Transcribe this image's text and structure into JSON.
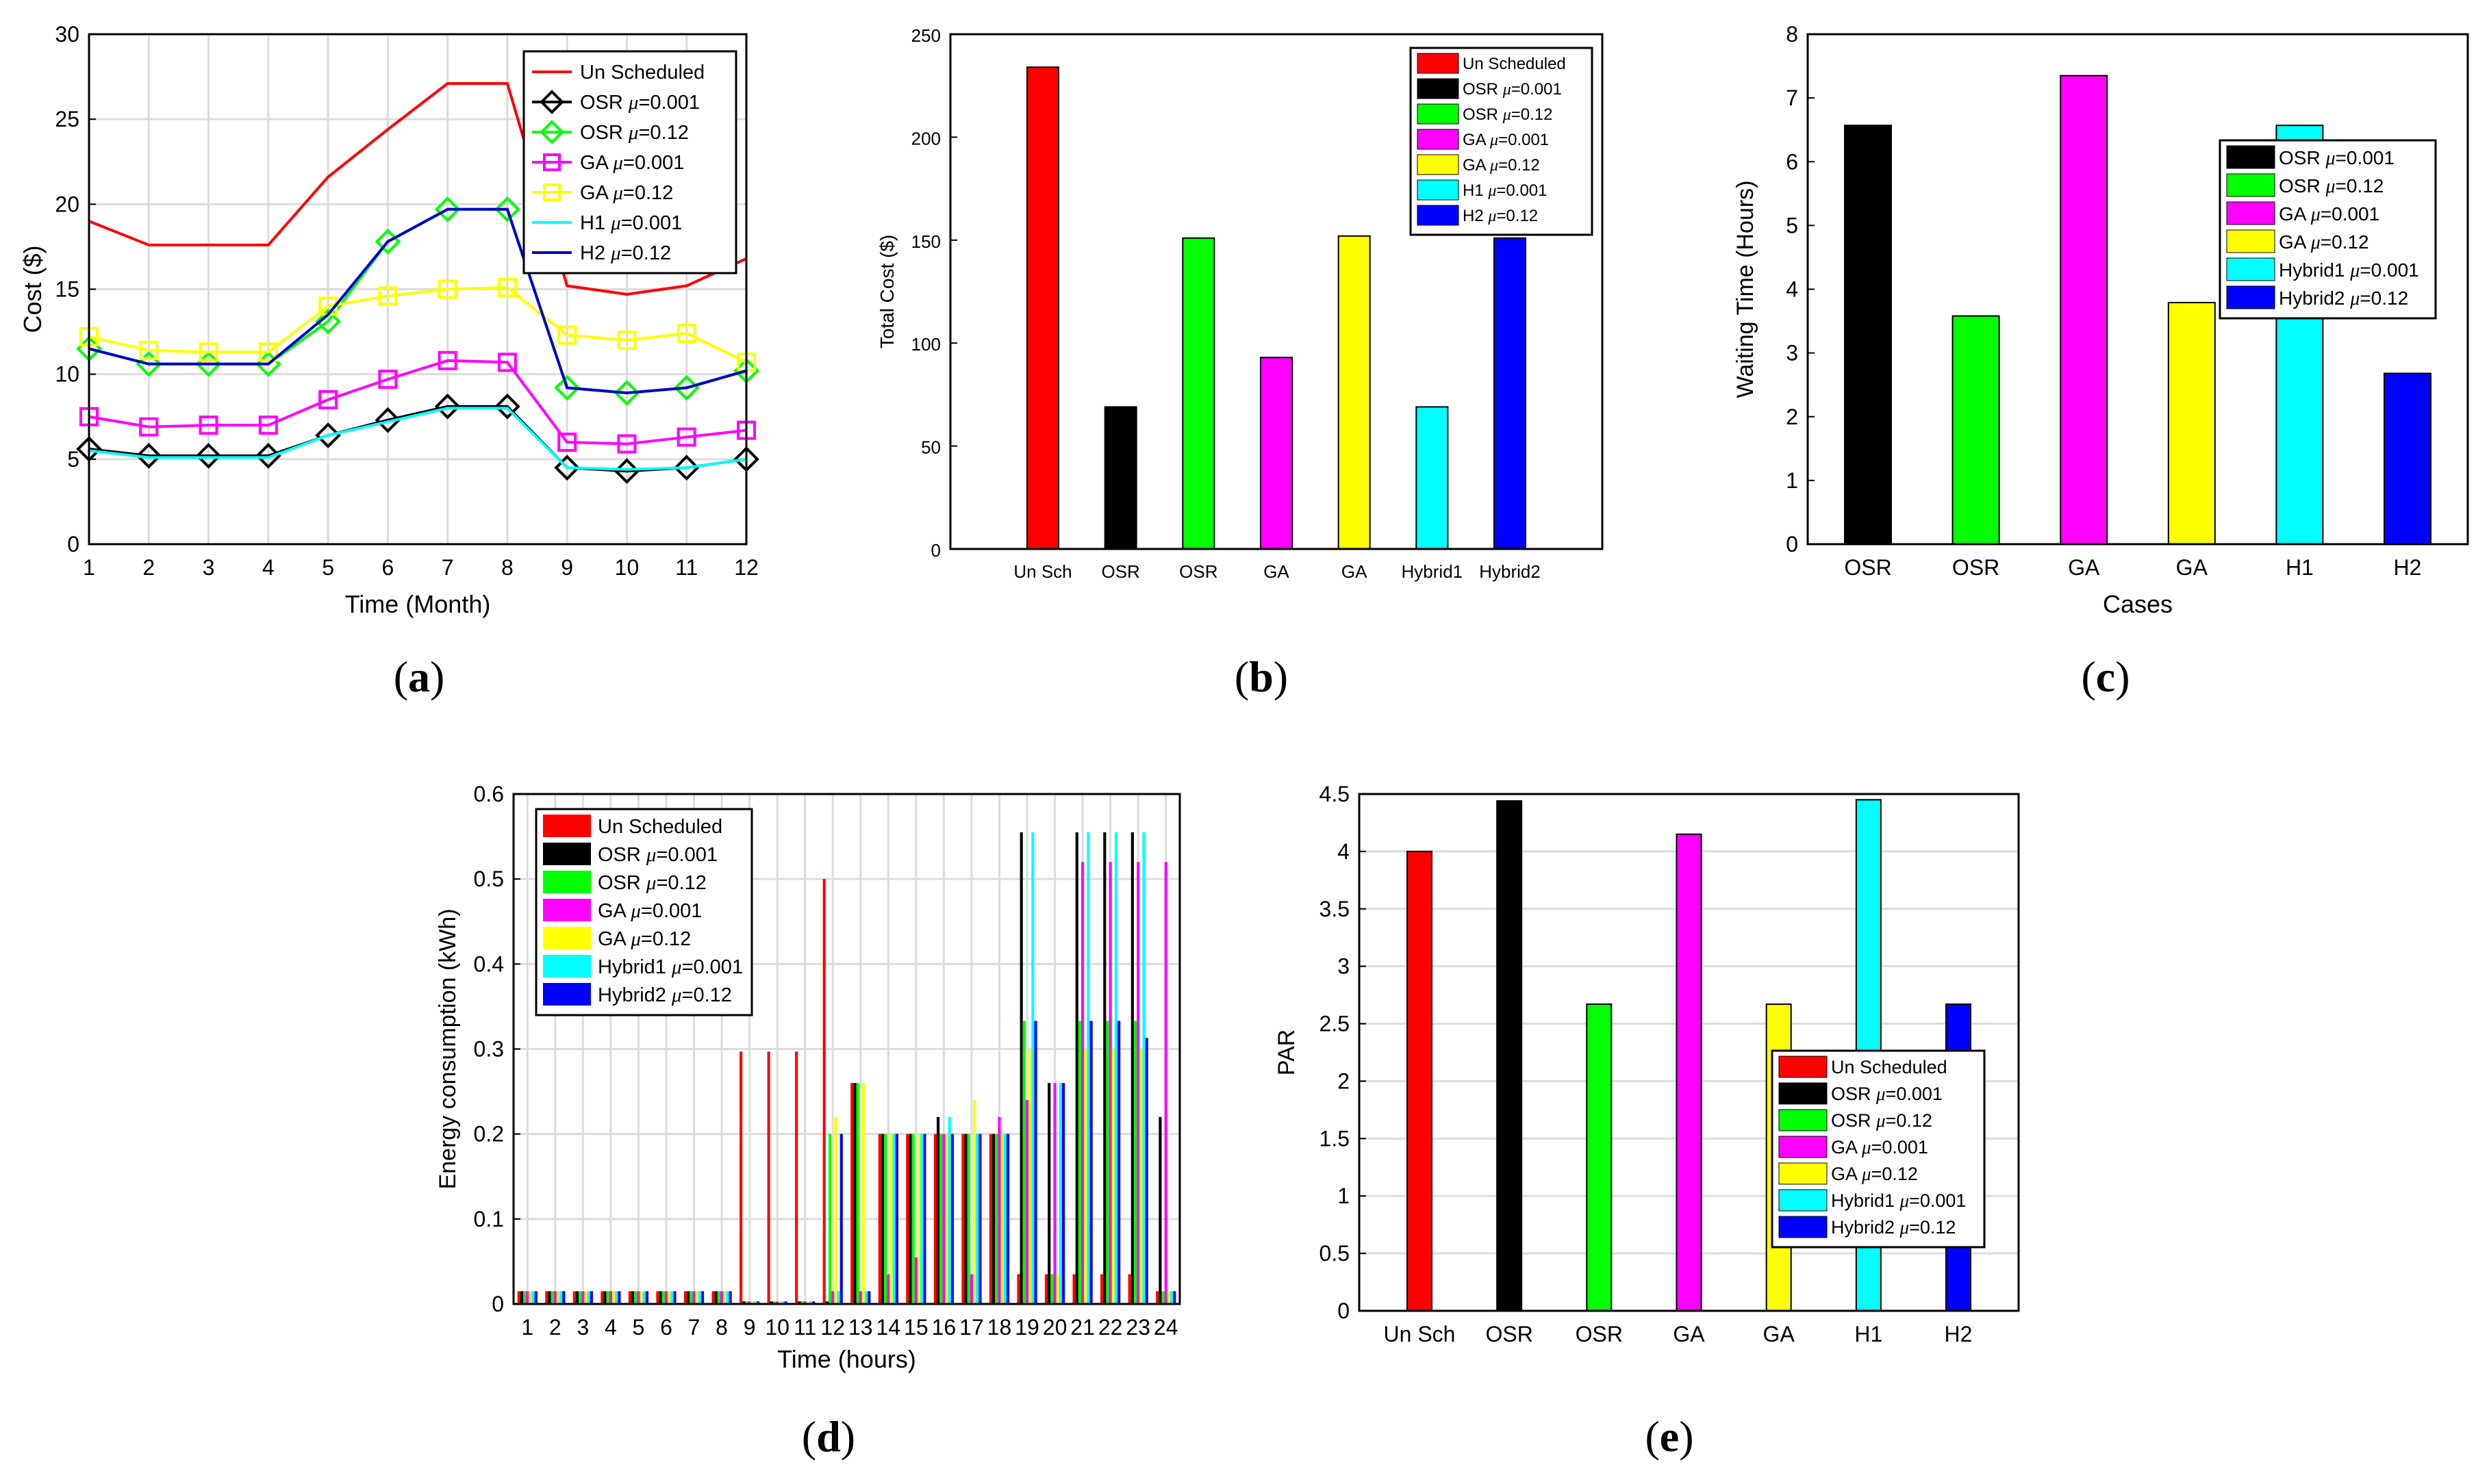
{
  "figure": {
    "panel_labels": [
      "(a)",
      "(b)",
      "(c)",
      "(d)",
      "(e)"
    ]
  },
  "colors": {
    "red": "#ff0000",
    "black": "#000000",
    "green": "#00ff00",
    "magenta": "#ff00ff",
    "yellow": "#ffff00",
    "cyan": "#00ffff",
    "blue": "#0000ff",
    "darkblue": "#0000cc"
  },
  "chart_data": [
    {
      "id": "a",
      "type": "line",
      "xlabel": "Time (Month)",
      "ylabel": "Cost ($)",
      "xlim": [
        1,
        12
      ],
      "ylim": [
        0,
        30
      ],
      "xticks": [
        "1",
        "2",
        "3",
        "4",
        "5",
        "6",
        "7",
        "8",
        "9",
        "10",
        "11",
        "12"
      ],
      "yticks": [
        "0",
        "5",
        "10",
        "15",
        "20",
        "25",
        "30"
      ],
      "grid": true,
      "legend_position": "top-right",
      "x": [
        1,
        2,
        3,
        4,
        5,
        6,
        7,
        8,
        9,
        10,
        11,
        12
      ],
      "series": [
        {
          "name": "Un Scheduled",
          "mu": "",
          "color": "#ff0000",
          "marker": "none",
          "values": [
            19,
            17.6,
            17.6,
            17.6,
            21.6,
            24.4,
            27.1,
            27.1,
            15.2,
            14.7,
            15.2,
            16.8
          ]
        },
        {
          "name": "OSR ",
          "mu": "=0.001",
          "color": "#000000",
          "marker": "diamond",
          "values": [
            5.6,
            5.2,
            5.2,
            5.2,
            6.4,
            7.3,
            8.1,
            8.1,
            4.5,
            4.3,
            4.5,
            5.0
          ]
        },
        {
          "name": "OSR ",
          "mu": "=0.12",
          "color": "#00ff00",
          "marker": "diamond",
          "values": [
            11.5,
            10.6,
            10.6,
            10.6,
            13.1,
            17.8,
            19.7,
            19.7,
            9.2,
            8.9,
            9.2,
            10.2
          ]
        },
        {
          "name": "GA ",
          "mu": "=0.001",
          "color": "#ff00ff",
          "marker": "square",
          "values": [
            7.5,
            6.9,
            7.0,
            7.0,
            8.5,
            9.7,
            10.8,
            10.7,
            6.0,
            5.9,
            6.3,
            6.7
          ]
        },
        {
          "name": "GA ",
          "mu": "=0.12",
          "color": "#ffff00",
          "marker": "square",
          "values": [
            12.2,
            11.4,
            11.3,
            11.3,
            14.0,
            14.6,
            15.0,
            15.1,
            12.3,
            12.0,
            12.4,
            10.7
          ]
        },
        {
          "name": "H1 ",
          "mu": "=0.001",
          "color": "#00ffff",
          "marker": "none",
          "values": [
            5.5,
            5.1,
            5.1,
            5.1,
            6.4,
            7.2,
            8.0,
            8.0,
            4.5,
            4.4,
            4.5,
            5.0
          ]
        },
        {
          "name": "H2 ",
          "mu": "=0.12",
          "color": "#0000cc",
          "marker": "none",
          "values": [
            11.5,
            10.6,
            10.6,
            10.6,
            13.5,
            17.8,
            19.7,
            19.7,
            9.2,
            8.9,
            9.2,
            10.2
          ]
        }
      ]
    },
    {
      "id": "b",
      "type": "bar",
      "xlabel": "",
      "ylabel": "Total Cost ($)",
      "ylim": [
        0,
        250
      ],
      "yticks": [
        "0",
        "50",
        "100",
        "150",
        "200",
        "250"
      ],
      "grid": false,
      "legend_position": "top-right",
      "categories": [
        "Un Sch",
        "OSR",
        "OSR",
        "GA",
        "GA",
        "Hybrid1",
        "Hybrid2"
      ],
      "values": [
        234,
        69,
        151,
        93,
        152,
        69,
        151
      ],
      "bar_colors": [
        "#ff0000",
        "#000000",
        "#00ff00",
        "#ff00ff",
        "#ffff00",
        "#00ffff",
        "#0000ff"
      ],
      "legend": [
        {
          "name": "Un Scheduled",
          "mu": "",
          "color": "#ff0000"
        },
        {
          "name": "OSR ",
          "mu": "=0.001",
          "color": "#000000"
        },
        {
          "name": "OSR ",
          "mu": "=0.12",
          "color": "#00ff00"
        },
        {
          "name": "GA ",
          "mu": "=0.001",
          "color": "#ff00ff"
        },
        {
          "name": "GA ",
          "mu": "=0.12",
          "color": "#ffff00"
        },
        {
          "name": "H1 ",
          "mu": "=0.001",
          "color": "#00ffff"
        },
        {
          "name": "H2 ",
          "mu": "=0.12",
          "color": "#0000ff"
        }
      ]
    },
    {
      "id": "c",
      "type": "bar",
      "xlabel": "Cases",
      "ylabel": "Waiting  Time (Hours)",
      "ylim": [
        0,
        8
      ],
      "yticks": [
        "0",
        "1",
        "2",
        "3",
        "4",
        "5",
        "6",
        "7",
        "8"
      ],
      "grid": false,
      "legend_position": "top-right",
      "categories": [
        "OSR",
        "OSR",
        "GA",
        "GA",
        "H1",
        "H2"
      ],
      "values": [
        6.57,
        3.58,
        7.35,
        3.79,
        6.57,
        2.68
      ],
      "bar_colors": [
        "#000000",
        "#00ff00",
        "#ff00ff",
        "#ffff00",
        "#00ffff",
        "#0000ff"
      ],
      "legend": [
        {
          "name": "OSR ",
          "mu": "=0.001",
          "color": "#000000"
        },
        {
          "name": "OSR ",
          "mu": "=0.12",
          "color": "#00ff00"
        },
        {
          "name": "GA ",
          "mu": "=0.001",
          "color": "#ff00ff"
        },
        {
          "name": "GA ",
          "mu": "=0.12",
          "color": "#ffff00"
        },
        {
          "name": "Hybrid1 ",
          "mu": "=0.001",
          "color": "#00ffff"
        },
        {
          "name": "Hybrid2 ",
          "mu": "=0.12",
          "color": "#0000ff"
        }
      ]
    },
    {
      "id": "d",
      "type": "bar",
      "xlabel": "Time (hours)",
      "ylabel": "Energy consumption (kWh)",
      "ylim": [
        0,
        0.6
      ],
      "yticks": [
        "0",
        "0.1",
        "0.2",
        "0.3",
        "0.4",
        "0.5",
        "0.6"
      ],
      "grid": true,
      "legend_position": "top-left",
      "categories": [
        "1",
        "2",
        "3",
        "4",
        "5",
        "6",
        "7",
        "8",
        "9",
        "10",
        "11",
        "12",
        "13",
        "14",
        "15",
        "16",
        "17",
        "18",
        "19",
        "20",
        "21",
        "22",
        "23",
        "24"
      ],
      "series": [
        {
          "name": "Un Scheduled",
          "mu": "",
          "color": "#ff0000",
          "values": [
            0.015,
            0.015,
            0.015,
            0.015,
            0.015,
            0.015,
            0.015,
            0.015,
            0.297,
            0.297,
            0.297,
            0.5,
            0.26,
            0.2,
            0.2,
            0.2,
            0.2,
            0.2,
            0.035,
            0.035,
            0.035,
            0.035,
            0.035,
            0.015
          ]
        },
        {
          "name": "OSR ",
          "mu": "=0.001",
          "color": "#000000",
          "values": [
            0.015,
            0.015,
            0.015,
            0.015,
            0.015,
            0.015,
            0.015,
            0.015,
            0.003,
            0.003,
            0.003,
            0.003,
            0.26,
            0.2,
            0.2,
            0.22,
            0.2,
            0.2,
            0.555,
            0.26,
            0.555,
            0.555,
            0.555,
            0.22
          ]
        },
        {
          "name": "OSR ",
          "mu": "=0.12",
          "color": "#00ff00",
          "values": [
            0.015,
            0.015,
            0.015,
            0.015,
            0.015,
            0.015,
            0.015,
            0.015,
            0.003,
            0.003,
            0.003,
            0.2,
            0.26,
            0.2,
            0.2,
            0.2,
            0.2,
            0.2,
            0.333,
            0.035,
            0.333,
            0.333,
            0.333,
            0.015
          ]
        },
        {
          "name": "GA ",
          "mu": "=0.001",
          "color": "#ff00ff",
          "values": [
            0.015,
            0.015,
            0.015,
            0.015,
            0.015,
            0.015,
            0.015,
            0.015,
            0.003,
            0.003,
            0.003,
            0.015,
            0.015,
            0.035,
            0.055,
            0.2,
            0.035,
            0.22,
            0.24,
            0.26,
            0.52,
            0.52,
            0.52,
            0.52
          ]
        },
        {
          "name": "GA ",
          "mu": "=0.12",
          "color": "#ffff00",
          "values": [
            0.015,
            0.015,
            0.015,
            0.015,
            0.015,
            0.015,
            0.015,
            0.015,
            0.003,
            0.003,
            0.003,
            0.22,
            0.26,
            0.2,
            0.2,
            0.2,
            0.24,
            0.2,
            0.3,
            0.035,
            0.3,
            0.3,
            0.3,
            0.015
          ]
        },
        {
          "name": "Hybrid1 ",
          "mu": "=0.001",
          "color": "#00ffff",
          "values": [
            0.015,
            0.015,
            0.015,
            0.015,
            0.015,
            0.015,
            0.015,
            0.015,
            0.003,
            0.003,
            0.003,
            0.015,
            0.015,
            0.2,
            0.2,
            0.22,
            0.2,
            0.2,
            0.555,
            0.26,
            0.555,
            0.555,
            0.555,
            0.015
          ]
        },
        {
          "name": "Hybrid2 ",
          "mu": "=0.12",
          "color": "#0000ff",
          "values": [
            0.015,
            0.015,
            0.015,
            0.015,
            0.015,
            0.015,
            0.015,
            0.015,
            0.003,
            0.003,
            0.003,
            0.2,
            0.015,
            0.2,
            0.2,
            0.2,
            0.2,
            0.2,
            0.333,
            0.26,
            0.333,
            0.333,
            0.313,
            0.015
          ]
        }
      ]
    },
    {
      "id": "e",
      "type": "bar",
      "xlabel": "",
      "ylabel": "PAR",
      "ylim": [
        0,
        4.5
      ],
      "yticks": [
        "0",
        "0.5",
        "1",
        "1.5",
        "2",
        "2.5",
        "3",
        "3.5",
        "4",
        "4.5"
      ],
      "grid": true,
      "legend_position": "bottom-right",
      "categories": [
        "Un Sch",
        "OSR",
        "OSR",
        "GA",
        "GA",
        "H1",
        "H2"
      ],
      "values": [
        4.0,
        4.44,
        2.67,
        4.15,
        2.67,
        4.45,
        2.67
      ],
      "bar_colors": [
        "#ff0000",
        "#000000",
        "#00ff00",
        "#ff00ff",
        "#ffff00",
        "#00ffff",
        "#0000ff"
      ],
      "legend": [
        {
          "name": "Un Scheduled",
          "mu": "",
          "color": "#ff0000"
        },
        {
          "name": "OSR ",
          "mu": "=0.001",
          "color": "#000000"
        },
        {
          "name": "OSR ",
          "mu": "=0.12",
          "color": "#00ff00"
        },
        {
          "name": "GA ",
          "mu": "=0.001",
          "color": "#ff00ff"
        },
        {
          "name": "GA ",
          "mu": "=0.12",
          "color": "#ffff00"
        },
        {
          "name": "Hybrid1 ",
          "mu": "=0.001",
          "color": "#00ffff"
        },
        {
          "name": "Hybrid2 ",
          "mu": "=0.12",
          "color": "#0000ff"
        }
      ]
    }
  ]
}
